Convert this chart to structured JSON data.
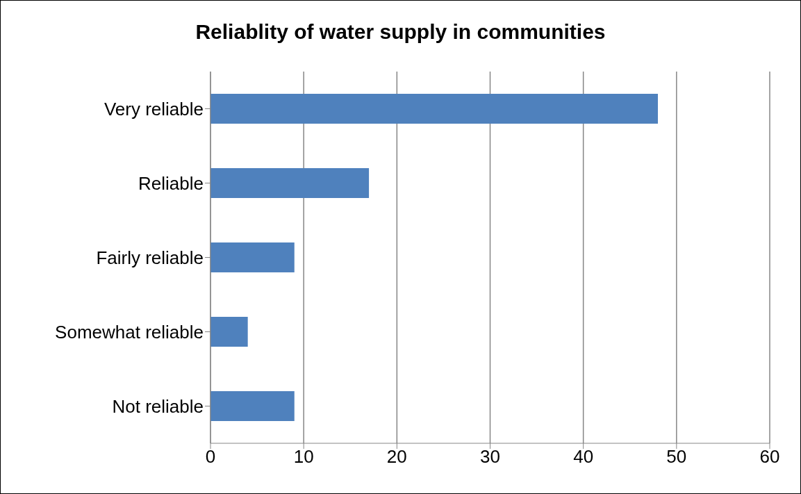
{
  "chart_data": {
    "type": "bar",
    "orientation": "horizontal",
    "title": "Reliablity of water supply in communities",
    "categories": [
      "Very reliable",
      "Reliable",
      "Fairly reliable",
      "Somewhat reliable",
      "Not reliable"
    ],
    "values": [
      48,
      17,
      9,
      4,
      9
    ],
    "color": "#4f81bd",
    "xlim": [
      0,
      60
    ],
    "xticks": [
      0,
      10,
      20,
      30,
      40,
      50,
      60
    ],
    "grid": "x"
  }
}
